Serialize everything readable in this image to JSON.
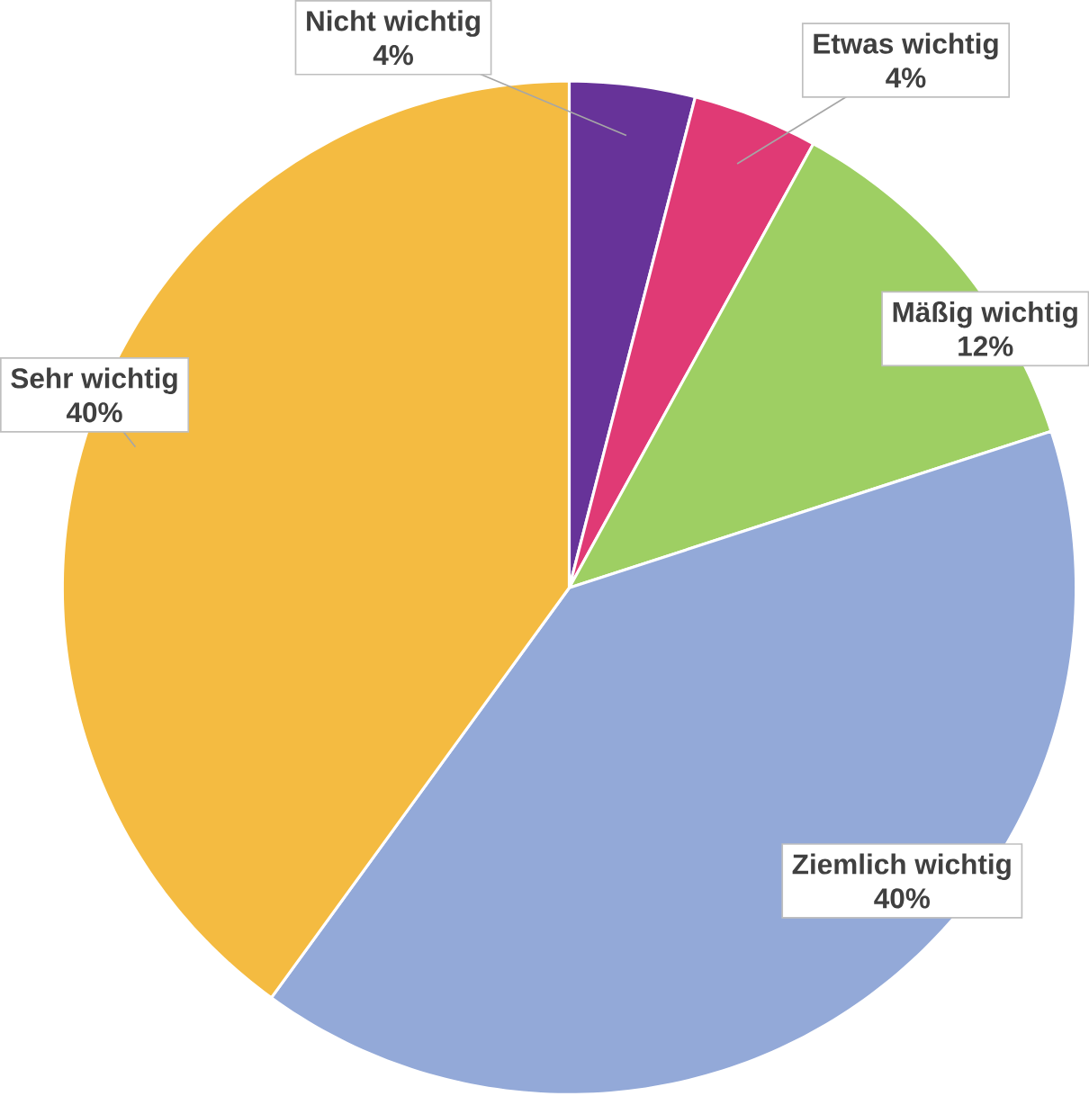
{
  "chart_data": {
    "type": "pie",
    "categories": [
      "Nicht wichtig",
      "Etwas wichtig",
      "Mäßig wichtig",
      "Ziemlich wichtig",
      "Sehr wichtig"
    ],
    "values": [
      4,
      4,
      12,
      40,
      40
    ],
    "value_labels": [
      "4%",
      "4%",
      "12%",
      "40%",
      "40%"
    ],
    "colors": [
      "#673399",
      "#e03a75",
      "#9ecf63",
      "#93a9d8",
      "#f4bb41"
    ]
  }
}
